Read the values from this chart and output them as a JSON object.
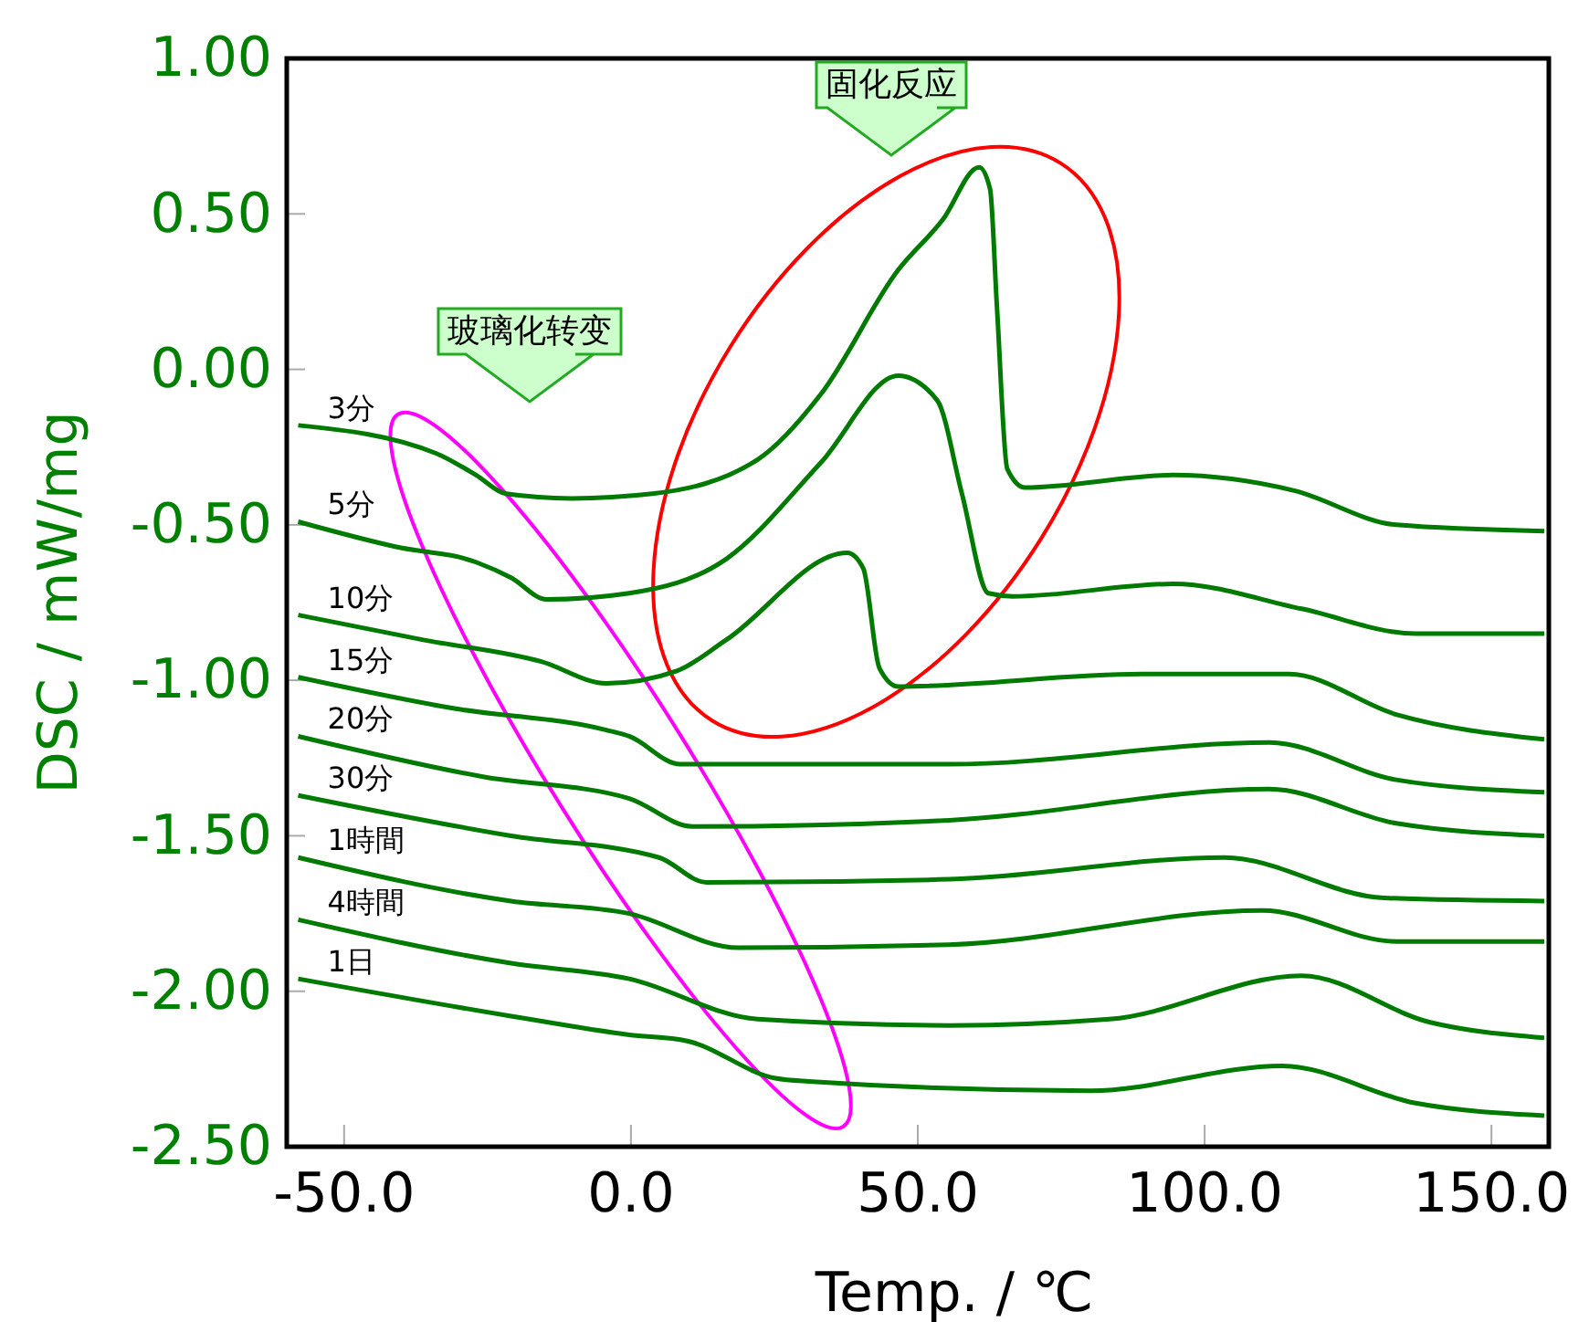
{
  "chart_data": {
    "type": "line",
    "xlabel": "Temp. / ℃",
    "ylabel": "DSC / mW/mg",
    "xlim": [
      -60,
      160
    ],
    "ylim": [
      -2.5,
      1.0
    ],
    "xticks": [
      {
        "value": -50,
        "label": "-50.0"
      },
      {
        "value": 0,
        "label": "0.0"
      },
      {
        "value": 50,
        "label": "50.0"
      },
      {
        "value": 100,
        "label": "100.0"
      },
      {
        "value": 150,
        "label": "150.0"
      }
    ],
    "yticks": [
      {
        "value": 1,
        "label": "1.00"
      },
      {
        "value": 0.5,
        "label": "0.50"
      },
      {
        "value": 0,
        "label": "0.00"
      },
      {
        "value": -0.5,
        "label": "-0.50"
      },
      {
        "value": -1,
        "label": "-1.00"
      },
      {
        "value": -1.5,
        "label": "-1.50"
      },
      {
        "value": -2,
        "label": "-2.00"
      },
      {
        "value": -2.5,
        "label": "-2.50"
      }
    ],
    "grid": false,
    "legend": false,
    "marker": "none",
    "line_style": "solid",
    "annotations": [
      "固化反应",
      "玻璃化转变"
    ],
    "series": [
      {
        "name": "3分",
        "color": "#007a00",
        "x": [
          -58,
          -34,
          -27,
          -21.8,
          -10.4,
          3.7,
          22.1,
          33.1,
          46.6,
          54.3,
          60.7,
          62.6,
          63.8,
          65.6,
          68.7,
          94.5,
          115.6,
          133.4,
          159.2
        ],
        "values": [
          -0.18,
          -0.27,
          -0.34,
          -0.4,
          -0.415,
          -0.4,
          -0.29,
          -0.08,
          0.32,
          0.48,
          0.65,
          0.58,
          0.2,
          -0.32,
          -0.38,
          -0.34,
          -0.39,
          -0.5,
          -0.52
        ]
      },
      {
        "name": "5分",
        "color": "#007a00",
        "x": [
          -58,
          -41.1,
          -27,
          -20.9,
          -14.7,
          -0.3,
          16.6,
          33.1,
          46.6,
          53.4,
          57.7,
          62.3,
          66.6,
          94.5,
          116.9,
          136.8,
          159.2
        ],
        "values": [
          -0.49,
          -0.57,
          -0.62,
          -0.67,
          -0.74,
          -0.72,
          -0.61,
          -0.3,
          -0.02,
          -0.1,
          -0.4,
          -0.72,
          -0.73,
          -0.69,
          -0.77,
          -0.85,
          -0.85
        ]
      },
      {
        "name": "10分",
        "color": "#007a00",
        "x": [
          -58,
          -36.2,
          -15.6,
          -4.3,
          8,
          16.6,
          37.7,
          40.5,
          43.3,
          46.6,
          89,
          114.7,
          133.4,
          159.2
        ],
        "values": [
          -0.79,
          -0.87,
          -0.94,
          -1.01,
          -0.97,
          -0.87,
          -0.59,
          -0.64,
          -0.96,
          -1.02,
          -0.98,
          -0.98,
          -1.11,
          -1.19
        ]
      },
      {
        "name": "15分",
        "color": "#007a00",
        "x": [
          -58,
          -31,
          -4.3,
          -0.3,
          8.6,
          55.5,
          111.3,
          133.4,
          159.2
        ],
        "values": [
          -0.99,
          -1.09,
          -1.16,
          -1.18,
          -1.27,
          -1.27,
          -1.2,
          -1.32,
          -1.36
        ]
      },
      {
        "name": "20分",
        "color": "#007a00",
        "x": [
          -58,
          -25.8,
          -0.3,
          10.7,
          55.5,
          111.3,
          133.4,
          159.2
        ],
        "values": [
          -1.18,
          -1.31,
          -1.38,
          -1.47,
          -1.45,
          -1.35,
          -1.46,
          -1.5
        ]
      },
      {
        "name": "30分",
        "color": "#007a00",
        "x": [
          -58,
          -20.9,
          4.9,
          13.2,
          55.5,
          103.4,
          131.3,
          159.2
        ],
        "values": [
          -1.37,
          -1.5,
          -1.57,
          -1.65,
          -1.64,
          -1.57,
          -1.7,
          -1.71
        ]
      },
      {
        "name": "1時間",
        "color": "#007a00",
        "x": [
          -58,
          -20.9,
          -0.3,
          18.7,
          55.5,
          110.1,
          133.4,
          159.2
        ],
        "values": [
          -1.57,
          -1.71,
          -1.75,
          -1.86,
          -1.85,
          -1.74,
          -1.84,
          -1.84
        ]
      },
      {
        "name": "4時間",
        "color": "#007a00",
        "x": [
          -58,
          -20.9,
          -0.3,
          22.1,
          55.5,
          83.4,
          116.9,
          139.3,
          159.2
        ],
        "values": [
          -1.77,
          -1.91,
          -1.96,
          -2.09,
          -2.11,
          -2.09,
          -1.95,
          -2.1,
          -2.15
        ]
      },
      {
        "name": "1日",
        "color": "#007a00",
        "x": [
          -58,
          -20.9,
          -0.3,
          9.8,
          25.2,
          31,
          80.1,
          113.5,
          136.8,
          159.2
        ],
        "values": [
          -1.96,
          -2.08,
          -2.14,
          -2.16,
          -2.28,
          -2.29,
          -2.32,
          -2.24,
          -2.36,
          -2.4
        ]
      }
    ]
  }
}
